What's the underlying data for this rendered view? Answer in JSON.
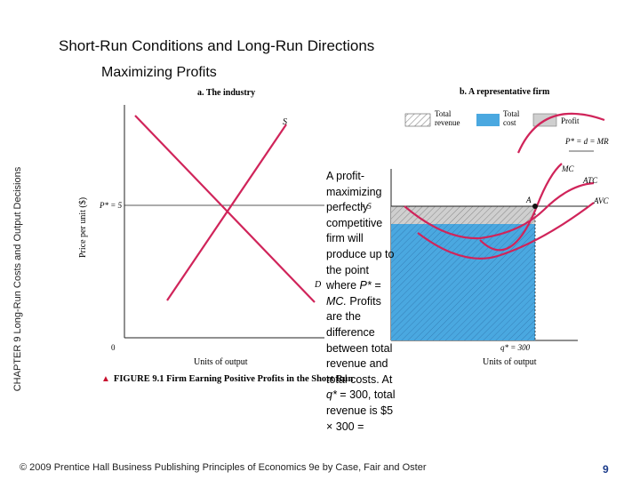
{
  "slide": {
    "title": "Short-Run Conditions and Long-Run Directions",
    "subtitle": "Maximizing Profits",
    "chapter_label": "CHAPTER 9 Long-Run Costs and Output Decisions"
  },
  "panel_a": {
    "title": "a. The industry",
    "ylabel": "Price per unit ($)",
    "xlabel": "Units of output",
    "price_label": "P* = 5",
    "supply_label": "S",
    "demand_label": "D",
    "origin_label": "0"
  },
  "panel_b": {
    "title": "b. A representative firm",
    "xlabel": "Units of output",
    "quantity_label": "q* = 300",
    "price_line_label": "P* = d = MR",
    "mc_label": "MC",
    "atc_label": "ATC",
    "avc_label": "AVC",
    "point_label": "A",
    "price_right_label": "= 5",
    "legend": {
      "total_revenue": "Total revenue",
      "total_cost": "Total cost",
      "profit": "Profit"
    },
    "colors": {
      "total_cost_fill": "#4aa8e0",
      "profit_fill": "#cfcfcf",
      "curves": "#d0245a"
    }
  },
  "callout": {
    "line1": "A profit-maximizing perfectly competitive firm will produce up to the point where ",
    "formula": "P* = MC.",
    "line2": " Profits are the difference between total revenue and total costs. At ",
    "q_label": "q*",
    "line3": " = 300, total revenue is $5 × 300 ="
  },
  "figure_caption": {
    "marker": "▲",
    "text": "FIGURE 9.1 Firm Earning Positive Profits in the Short Run"
  },
  "footer": {
    "text": "© 2009 Prentice Hall Business Publishing Principles of Economics 9e by Case, Fair and Oster",
    "page": "9"
  }
}
